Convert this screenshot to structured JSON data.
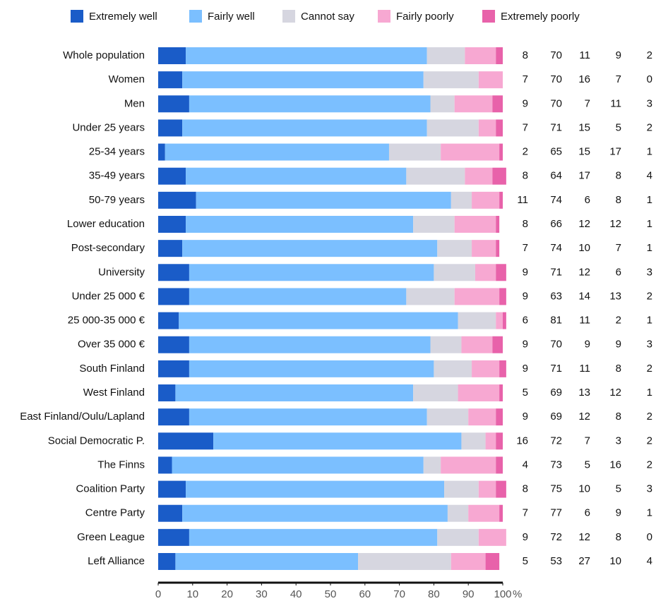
{
  "chart_data": {
    "type": "stacked-bar",
    "orientation": "horizontal",
    "categories": [
      "Whole population",
      "Women",
      "Men",
      "Under 25 years",
      "25-34 years",
      "35-49 years",
      "50-79 years",
      "Lower education",
      "Post-secondary",
      "University",
      "Under 25 000 €",
      "25 000-35 000 €",
      "Over 35 000 €",
      "South Finland",
      "West Finland",
      "East Finland/Oulu/Lapland",
      "Social Democratic P.",
      "The Finns",
      "Coalition Party",
      "Centre Party",
      "Green League",
      "Left Alliance"
    ],
    "series": [
      {
        "name": "Extremely well",
        "color": "#1a5cc8",
        "values": [
          8,
          7,
          9,
          7,
          2,
          8,
          11,
          8,
          7,
          9,
          9,
          6,
          9,
          9,
          5,
          9,
          16,
          4,
          8,
          7,
          9,
          5
        ]
      },
      {
        "name": "Fairly well",
        "color": "#7bbfff",
        "values": [
          70,
          70,
          70,
          71,
          65,
          64,
          74,
          66,
          74,
          71,
          63,
          81,
          70,
          71,
          69,
          69,
          72,
          73,
          75,
          77,
          72,
          53
        ]
      },
      {
        "name": "Cannot say",
        "color": "#d6d6e0",
        "values": [
          11,
          16,
          7,
          15,
          15,
          17,
          6,
          12,
          10,
          12,
          14,
          11,
          9,
          11,
          13,
          12,
          7,
          5,
          10,
          6,
          12,
          27
        ]
      },
      {
        "name": "Fairly poorly",
        "color": "#f7a8d2",
        "values": [
          9,
          7,
          11,
          5,
          17,
          8,
          8,
          12,
          7,
          6,
          13,
          2,
          9,
          8,
          12,
          8,
          3,
          16,
          5,
          9,
          8,
          10
        ]
      },
      {
        "name": "Extremely poorly",
        "color": "#e862aa",
        "values": [
          2,
          0,
          3,
          2,
          1,
          4,
          1,
          1,
          1,
          3,
          2,
          1,
          3,
          2,
          1,
          2,
          2,
          2,
          3,
          1,
          0,
          4
        ]
      }
    ],
    "xlabel": "%",
    "xlim": [
      0,
      100
    ],
    "xticks": [
      0,
      10,
      20,
      30,
      40,
      50,
      60,
      70,
      80,
      90,
      100
    ],
    "legend": "top"
  }
}
